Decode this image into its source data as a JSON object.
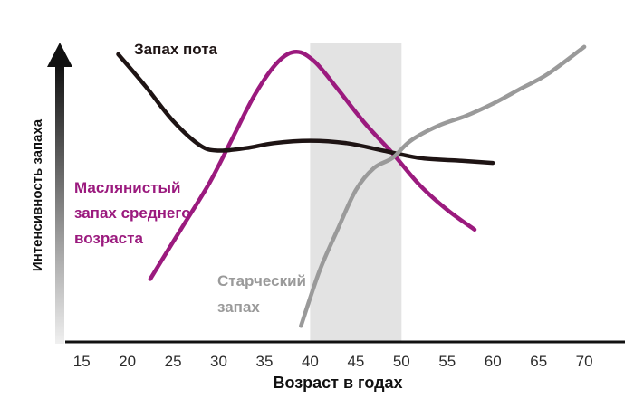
{
  "chart_data": {
    "type": "line",
    "xlabel": "Возраст в годах",
    "ylabel": "Интенсивность запаха",
    "xlim": [
      13,
      73
    ],
    "ylim": [
      0,
      100
    ],
    "xticks": [
      15,
      20,
      25,
      30,
      35,
      40,
      45,
      50,
      55,
      60,
      65,
      70
    ],
    "highlight_band": [
      40,
      50
    ],
    "series": [
      {
        "name": "Запах пота",
        "color": "#1e1414",
        "label_lines": [
          "Запах пота"
        ],
        "x": [
          19,
          22,
          25,
          28,
          30,
          33,
          36,
          40,
          44,
          48,
          52,
          56,
          60
        ],
        "y": [
          100,
          87,
          73,
          63,
          61,
          62,
          64,
          65,
          64,
          61,
          58,
          57,
          56
        ]
      },
      {
        "name": "Маслянистый запах среднего возраста",
        "color": "#9b1a7e",
        "label_lines": [
          "Маслянистый",
          "запах среднего",
          "возраста"
        ],
        "x": [
          22.5,
          26,
          29,
          31.5,
          34,
          36.5,
          38.5,
          40.5,
          43,
          46,
          49,
          52,
          55,
          58
        ],
        "y": [
          9,
          30,
          48,
          66,
          84,
          97,
          101,
          97,
          86,
          72,
          60,
          47,
          37,
          29
        ]
      },
      {
        "name": "Старческий запах",
        "color": "#9a9a9a",
        "label_lines": [
          "Старческий",
          "запах"
        ],
        "x": [
          39,
          41,
          43,
          45,
          47,
          49,
          51,
          54,
          57,
          60,
          63,
          66,
          70
        ],
        "y": [
          -10,
          12,
          29,
          45,
          54,
          58,
          65,
          71,
          75,
          80,
          86,
          92,
          103
        ]
      }
    ]
  }
}
